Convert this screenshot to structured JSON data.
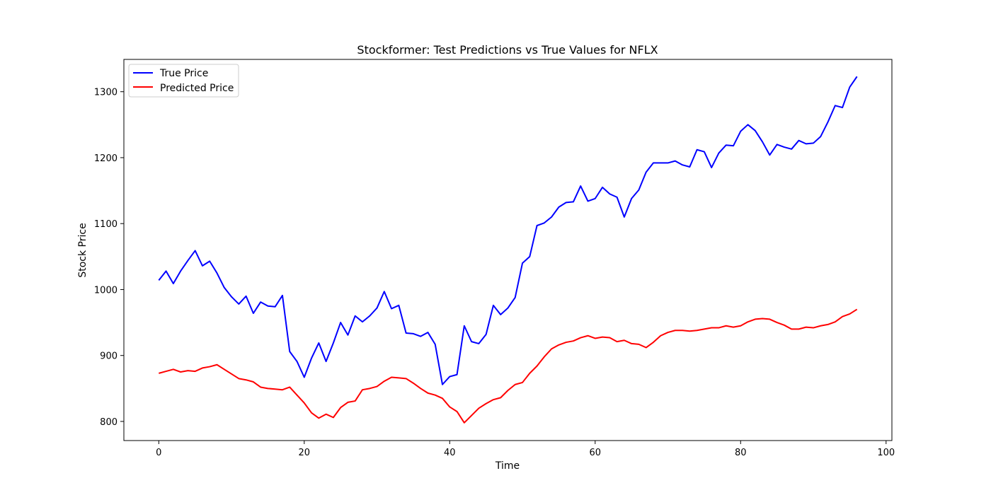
{
  "chart_data": {
    "type": "line",
    "title": "Stockformer: Test Predictions vs True Values for NFLX",
    "xlabel": "Time",
    "ylabel": "Stock Price",
    "xlim": [
      -4.8,
      100.8
    ],
    "ylim": [
      771,
      1349
    ],
    "xticks": [
      0,
      20,
      40,
      60,
      80,
      100
    ],
    "yticks": [
      800,
      900,
      1000,
      1100,
      1200,
      1300
    ],
    "grid": false,
    "legend_position": "upper-left",
    "series": [
      {
        "name": "True Price",
        "color": "#0000ff",
        "values": [
          1014,
          1028,
          1009,
          1028,
          1044,
          1059,
          1036,
          1043,
          1025,
          1003,
          989,
          978,
          990,
          964,
          981,
          975,
          974,
          991,
          906,
          891,
          867,
          896,
          919,
          891,
          919,
          950,
          931,
          960,
          951,
          960,
          972,
          997,
          971,
          976,
          934,
          933,
          929,
          935,
          917,
          856,
          868,
          871,
          945,
          921,
          918,
          932,
          976,
          962,
          972,
          988,
          1040,
          1050,
          1097,
          1101,
          1110,
          1125,
          1132,
          1133,
          1157,
          1134,
          1138,
          1155,
          1145,
          1140,
          1110,
          1138,
          1151,
          1178,
          1192,
          1192,
          1192,
          1195,
          1189,
          1186,
          1212,
          1209,
          1185,
          1207,
          1219,
          1218,
          1240,
          1250,
          1241,
          1224,
          1204,
          1220,
          1216,
          1213,
          1226,
          1221,
          1222,
          1232,
          1254,
          1279,
          1276,
          1307,
          1323
        ]
      },
      {
        "name": "Predicted Price",
        "color": "#ff0000",
        "values": [
          873,
          876,
          879,
          875,
          877,
          876,
          881,
          883,
          886,
          879,
          872,
          865,
          863,
          860,
          852,
          850,
          849,
          848,
          852,
          840,
          828,
          813,
          805,
          811,
          806,
          821,
          829,
          831,
          848,
          850,
          853,
          861,
          867,
          866,
          865,
          858,
          850,
          843,
          840,
          835,
          822,
          815,
          798,
          809,
          820,
          827,
          833,
          836,
          847,
          856,
          859,
          873,
          884,
          898,
          910,
          916,
          920,
          922,
          927,
          930,
          926,
          928,
          927,
          921,
          923,
          918,
          917,
          912,
          920,
          930,
          935,
          938,
          938,
          937,
          938,
          940,
          942,
          942,
          945,
          943,
          945,
          951,
          955,
          956,
          955,
          950,
          946,
          940,
          940,
          943,
          942,
          945,
          947,
          951,
          959,
          963,
          970
        ]
      }
    ]
  }
}
